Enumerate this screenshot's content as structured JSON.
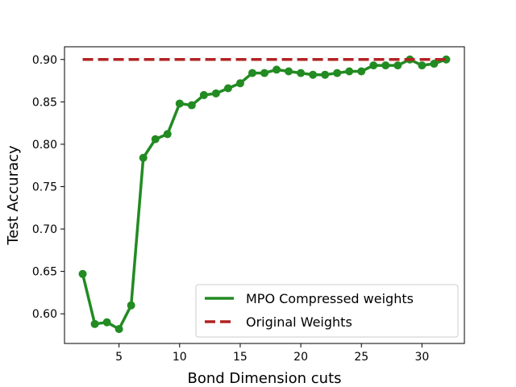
{
  "chart_data": {
    "type": "line",
    "xlabel": "Bond Dimension cuts",
    "ylabel": "Test Accuracy",
    "xlim": [
      0.5,
      33.5
    ],
    "ylim": [
      0.565,
      0.915
    ],
    "xticks": [
      5,
      10,
      15,
      20,
      25,
      30
    ],
    "yticks": [
      0.6,
      0.65,
      0.7,
      0.75,
      0.8,
      0.85,
      0.9
    ],
    "xtick_labels": [
      "5",
      "10",
      "15",
      "20",
      "25",
      "30"
    ],
    "ytick_labels": [
      "0.60",
      "0.65",
      "0.70",
      "0.75",
      "0.80",
      "0.85",
      "0.90"
    ],
    "legend_position": "lower-right",
    "series": [
      {
        "name": "MPO Compressed weights",
        "color": "#228b22",
        "style": "solid-with-markers",
        "x": [
          2,
          3,
          4,
          5,
          6,
          7,
          8,
          9,
          10,
          11,
          12,
          13,
          14,
          15,
          16,
          17,
          18,
          19,
          20,
          21,
          22,
          23,
          24,
          25,
          26,
          27,
          28,
          29,
          30,
          31,
          32
        ],
        "y": [
          0.647,
          0.588,
          0.59,
          0.582,
          0.61,
          0.784,
          0.806,
          0.812,
          0.848,
          0.846,
          0.858,
          0.86,
          0.866,
          0.872,
          0.884,
          0.884,
          0.888,
          0.886,
          0.884,
          0.882,
          0.882,
          0.884,
          0.886,
          0.886,
          0.893,
          0.893,
          0.893,
          0.9,
          0.893,
          0.895,
          0.9
        ]
      },
      {
        "name": "Original Weights",
        "color": "#b22222",
        "style": "dashed",
        "x": [
          2,
          32
        ],
        "y": [
          0.9,
          0.9
        ]
      }
    ]
  }
}
